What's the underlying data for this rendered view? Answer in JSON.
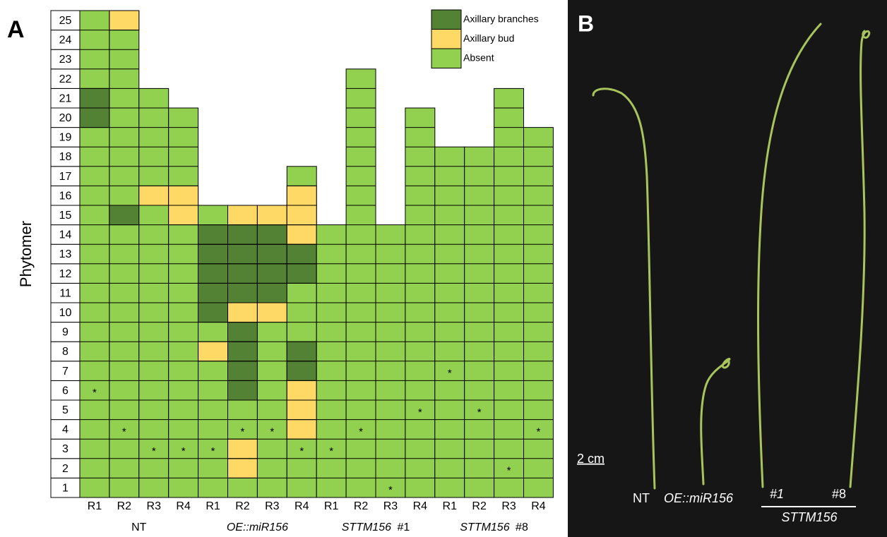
{
  "chart_data": {
    "type": "phytomer-grid",
    "panel": "A",
    "ylabel": "Phytomer",
    "yticks": [
      1,
      2,
      3,
      4,
      5,
      6,
      7,
      8,
      9,
      10,
      11,
      12,
      13,
      14,
      15,
      16,
      17,
      18,
      19,
      20,
      21,
      22,
      23,
      24,
      25
    ],
    "marker": "*",
    "legend": [
      {
        "name": "Axillary branches",
        "color": "#548235"
      },
      {
        "name": "Axillary bud",
        "color": "#ffd966"
      },
      {
        "name": "Absent",
        "color": "#92d050"
      }
    ],
    "groups": [
      {
        "name": "NT",
        "columns": [
          {
            "label": "R1",
            "phytomers": 25,
            "branches": [
              20,
              21
            ],
            "bud": [],
            "asterisk": 6
          },
          {
            "label": "R2",
            "phytomers": 25,
            "branches": [
              15
            ],
            "bud": [
              25
            ],
            "asterisk": 4
          },
          {
            "label": "R3",
            "phytomers": 21,
            "branches": [],
            "bud": [
              16
            ],
            "asterisk": 3
          },
          {
            "label": "R4",
            "phytomers": 20,
            "branches": [],
            "bud": [
              15,
              16
            ],
            "asterisk": 3
          }
        ]
      },
      {
        "name": "OE::miR156",
        "italic": true,
        "columns": [
          {
            "label": "R1",
            "phytomers": 15,
            "branches": [
              10,
              11,
              12,
              13,
              14
            ],
            "bud": [
              8
            ],
            "asterisk": 3
          },
          {
            "label": "R2",
            "phytomers": 15,
            "branches": [
              6,
              7,
              8,
              9,
              11,
              12,
              13,
              14
            ],
            "bud": [
              2,
              3,
              10,
              15
            ],
            "asterisk": 4
          },
          {
            "label": "R3",
            "phytomers": 15,
            "branches": [
              11,
              12,
              13,
              14
            ],
            "bud": [
              10,
              15
            ],
            "asterisk": 4
          },
          {
            "label": "R4",
            "phytomers": 17,
            "branches": [
              7,
              8,
              12,
              13
            ],
            "bud": [
              4,
              5,
              6,
              14,
              15,
              16
            ],
            "asterisk": 3
          }
        ]
      },
      {
        "name": "STTM156",
        "italic": true,
        "suffix": "#1",
        "columns": [
          {
            "label": "R1",
            "phytomers": 14,
            "branches": [],
            "bud": [],
            "asterisk": 3
          },
          {
            "label": "R2",
            "phytomers": 22,
            "branches": [],
            "bud": [],
            "asterisk": 4
          },
          {
            "label": "R3",
            "phytomers": 14,
            "branches": [],
            "bud": [],
            "asterisk": 1
          },
          {
            "label": "R4",
            "phytomers": 20,
            "branches": [],
            "bud": [],
            "asterisk": 5
          }
        ]
      },
      {
        "name": "STTM156",
        "italic": true,
        "suffix": "#8",
        "columns": [
          {
            "label": "R1",
            "phytomers": 18,
            "branches": [],
            "bud": [],
            "asterisk": 7
          },
          {
            "label": "R2",
            "phytomers": 18,
            "branches": [],
            "bud": [],
            "asterisk": 5
          },
          {
            "label": "R3",
            "phytomers": 21,
            "branches": [],
            "bud": [],
            "asterisk": 2
          },
          {
            "label": "R4",
            "phytomers": 19,
            "branches": [],
            "bud": [],
            "asterisk": 4
          }
        ]
      }
    ]
  },
  "photo": {
    "panel": "B",
    "scale": "2 cm",
    "nt": "NT",
    "oe": "OE::miR156",
    "line1": "#1",
    "line8": "#8",
    "sttm": "STTM156"
  }
}
